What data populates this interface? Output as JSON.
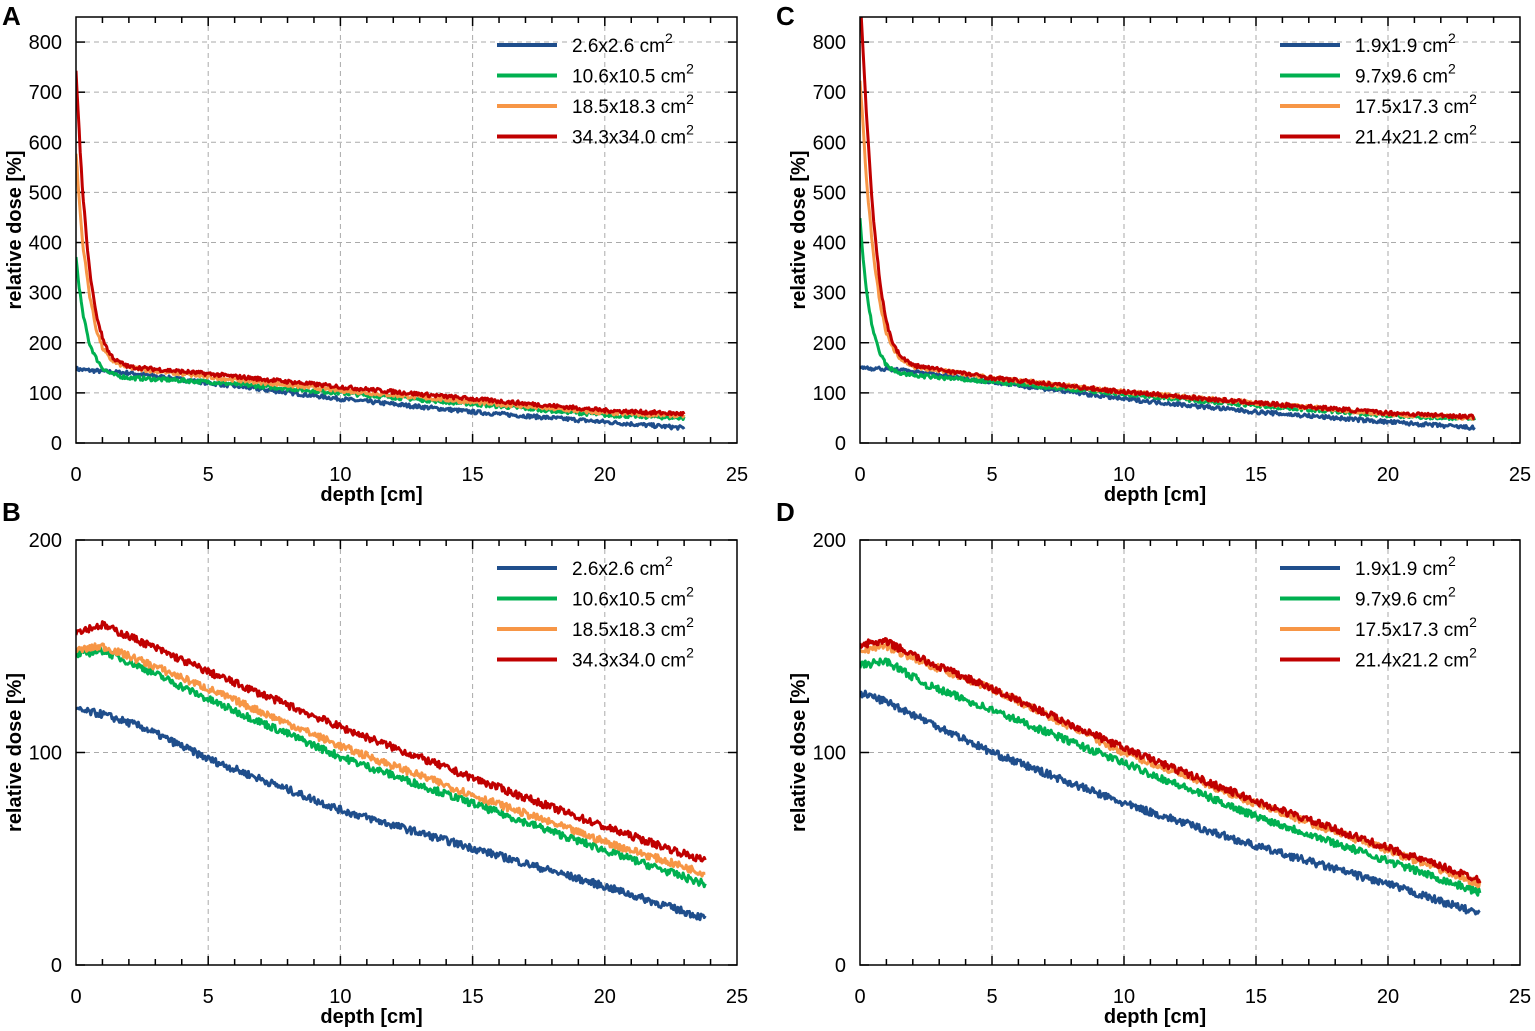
{
  "colors": {
    "blue": "#1f4e8c",
    "green": "#00b050",
    "orange": "#f79646",
    "red": "#c00000"
  },
  "chart_data": [
    {
      "panel": "A",
      "type": "line",
      "xlabel": "depth [cm]",
      "ylabel": "relative dose [%]",
      "xlim": [
        0,
        25
      ],
      "ylim": [
        0,
        850
      ],
      "xticks": [
        "0",
        "5",
        "10",
        "15",
        "20",
        "25"
      ],
      "xtick_values": [
        0,
        5,
        10,
        15,
        20,
        25
      ],
      "yticks": [
        "0",
        "100",
        "200",
        "300",
        "400",
        "500",
        "600",
        "700",
        "800"
      ],
      "ytick_values": [
        0,
        100,
        200,
        300,
        400,
        500,
        600,
        700,
        800
      ],
      "grid": true,
      "legend_position": "top-right",
      "x": [
        0,
        0.1,
        0.25,
        0.5,
        0.75,
        1,
        1.25,
        1.5,
        2,
        5,
        10,
        15,
        20,
        23
      ],
      "series": [
        {
          "name": "2.6x2.6 cm",
          "sup": "2",
          "color": "blue",
          "values": [
            148,
            147,
            146,
            145,
            144,
            143,
            142,
            141,
            140,
            120,
            88,
            62,
            42,
            30
          ]
        },
        {
          "name": "10.6x10.5 cm",
          "sup": "2",
          "color": "green",
          "values": [
            370,
            320,
            260,
            200,
            170,
            150,
            140,
            135,
            130,
            122,
            100,
            78,
            56,
            50
          ]
        },
        {
          "name": "18.5x18.3 cm",
          "sup": "2",
          "color": "orange",
          "values": [
            580,
            500,
            400,
            300,
            230,
            190,
            170,
            160,
            150,
            132,
            105,
            82,
            60,
            55
          ]
        },
        {
          "name": "34.3x34.0 cm",
          "sup": "2",
          "color": "red",
          "values": [
            740,
            640,
            500,
            350,
            260,
            210,
            180,
            165,
            152,
            138,
            112,
            88,
            65,
            58
          ]
        }
      ]
    },
    {
      "panel": "B",
      "type": "line",
      "xlabel": "depth [cm]",
      "ylabel": "relative dose [%]",
      "xlim": [
        0,
        25
      ],
      "ylim": [
        0,
        200
      ],
      "xticks": [
        "0",
        "5",
        "10",
        "15",
        "20",
        "25"
      ],
      "xtick_values": [
        0,
        5,
        10,
        15,
        20,
        25
      ],
      "yticks": [
        "0",
        "100",
        "200"
      ],
      "ytick_values": [
        0,
        100,
        200
      ],
      "grid": true,
      "legend_position": "top-right",
      "x": [
        0,
        1,
        2.5,
        5,
        10,
        15,
        20,
        23.8
      ],
      "series": [
        {
          "name": "2.6x2.6 cm",
          "sup": "2",
          "color": "blue",
          "values": [
            120,
            118,
            112,
            97,
            73,
            55,
            37,
            22
          ]
        },
        {
          "name": "10.6x10.5 cm",
          "sup": "2",
          "color": "green",
          "values": [
            146,
            148,
            140,
            125,
            98,
            76,
            54,
            38
          ]
        },
        {
          "name": "18.5x18.3 cm",
          "sup": "2",
          "color": "orange",
          "values": [
            148,
            150,
            143,
            130,
            103,
            80,
            58,
            43
          ]
        },
        {
          "name": "34.3x34.0 cm",
          "sup": "2",
          "color": "red",
          "values": [
            157,
            160,
            152,
            138,
            112,
            88,
            65,
            49
          ]
        }
      ]
    },
    {
      "panel": "C",
      "type": "line",
      "xlabel": "depth [cm]",
      "ylabel": "relative dose [%]",
      "xlim": [
        0,
        25
      ],
      "ylim": [
        0,
        850
      ],
      "xticks": [
        "0",
        "5",
        "10",
        "15",
        "20",
        "25"
      ],
      "xtick_values": [
        0,
        5,
        10,
        15,
        20,
        25
      ],
      "yticks": [
        "0",
        "100",
        "200",
        "300",
        "400",
        "500",
        "600",
        "700",
        "800"
      ],
      "ytick_values": [
        0,
        100,
        200,
        300,
        400,
        500,
        600,
        700,
        800
      ],
      "grid": true,
      "legend_position": "top-right",
      "x": [
        0,
        0.1,
        0.25,
        0.5,
        0.75,
        1,
        1.25,
        1.5,
        2,
        5,
        10,
        15,
        20,
        23.3
      ],
      "series": [
        {
          "name": "1.9x1.9 cm",
          "sup": "2",
          "color": "blue",
          "values": [
            152,
            151,
            150,
            149,
            148,
            147,
            146,
            145,
            143,
            122,
            88,
            62,
            42,
            30
          ]
        },
        {
          "name": "9.7x9.6 cm",
          "sup": "2",
          "color": "green",
          "values": [
            445,
            380,
            300,
            220,
            180,
            155,
            145,
            140,
            135,
            122,
            98,
            75,
            55,
            48
          ]
        },
        {
          "name": "17.5x17.3 cm",
          "sup": "2",
          "color": "orange",
          "values": [
            720,
            650,
            520,
            380,
            280,
            220,
            190,
            170,
            152,
            130,
            102,
            80,
            58,
            50
          ]
        },
        {
          "name": "21.4x21.2 cm",
          "sup": "2",
          "color": "red",
          "values": [
            900,
            800,
            650,
            450,
            320,
            240,
            200,
            175,
            155,
            130,
            102,
            80,
            60,
            52
          ]
        }
      ]
    },
    {
      "panel": "D",
      "type": "line",
      "xlabel": "depth [cm]",
      "ylabel": "relative dose [%]",
      "xlim": [
        0,
        25
      ],
      "ylim": [
        0,
        200
      ],
      "xticks": [
        "0",
        "5",
        "10",
        "15",
        "20",
        "25"
      ],
      "xtick_values": [
        0,
        5,
        10,
        15,
        20,
        25
      ],
      "yticks": [
        "0",
        "100",
        "200"
      ],
      "ytick_values": [
        0,
        100,
        200
      ],
      "grid": true,
      "legend_position": "top-right",
      "x": [
        0,
        1,
        2.5,
        5,
        10,
        15,
        20,
        23.5
      ],
      "series": [
        {
          "name": "1.9x1.9 cm",
          "sup": "2",
          "color": "blue",
          "values": [
            128,
            124,
            115,
            100,
            76,
            56,
            38,
            24
          ]
        },
        {
          "name": "9.7x9.6 cm",
          "sup": "2",
          "color": "green",
          "values": [
            141,
            143,
            132,
            120,
            95,
            70,
            49,
            34
          ]
        },
        {
          "name": "17.5x17.3 cm",
          "sup": "2",
          "color": "orange",
          "values": [
            148,
            150,
            142,
            130,
            100,
            76,
            54,
            38
          ]
        },
        {
          "name": "21.4x21.2 cm",
          "sup": "2",
          "color": "red",
          "values": [
            151,
            152,
            143,
            130,
            102,
            77,
            55,
            40
          ]
        }
      ]
    }
  ]
}
